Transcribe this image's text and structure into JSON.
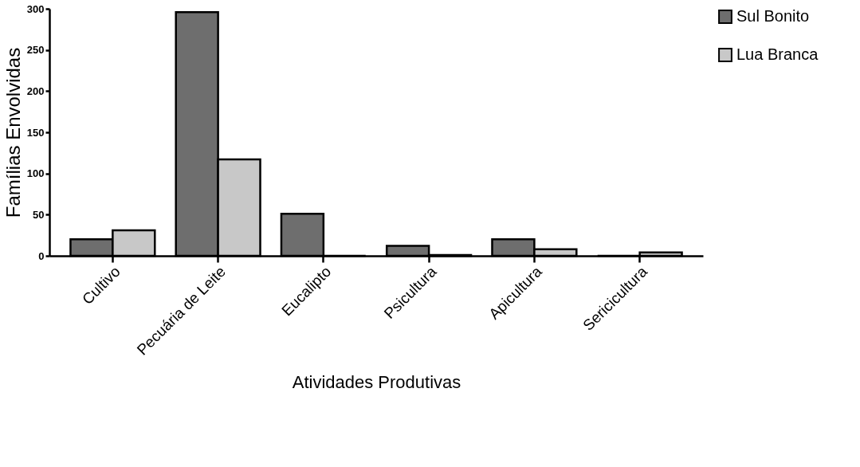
{
  "chart_data": {
    "type": "bar",
    "xlabel": "Atividades Produtivas",
    "ylabel": "Famílias Envolvidas",
    "categories": [
      "Cultivo",
      "Pecuária de Leite",
      "Eucalipto",
      "Psicultura",
      "Apicultura",
      "Sericicultura"
    ],
    "series": [
      {
        "name": "Sul Bonito",
        "color": "#6e6e6e",
        "values": [
          20,
          296,
          51,
          12,
          20,
          0
        ]
      },
      {
        "name": "Lua Branca",
        "color": "#c8c8c8",
        "values": [
          31,
          117,
          0,
          1,
          8,
          4
        ]
      }
    ],
    "ylim": [
      0,
      300
    ],
    "yticks": [
      0,
      50,
      100,
      150,
      200,
      250,
      300
    ],
    "grid": false,
    "legend": "right"
  }
}
